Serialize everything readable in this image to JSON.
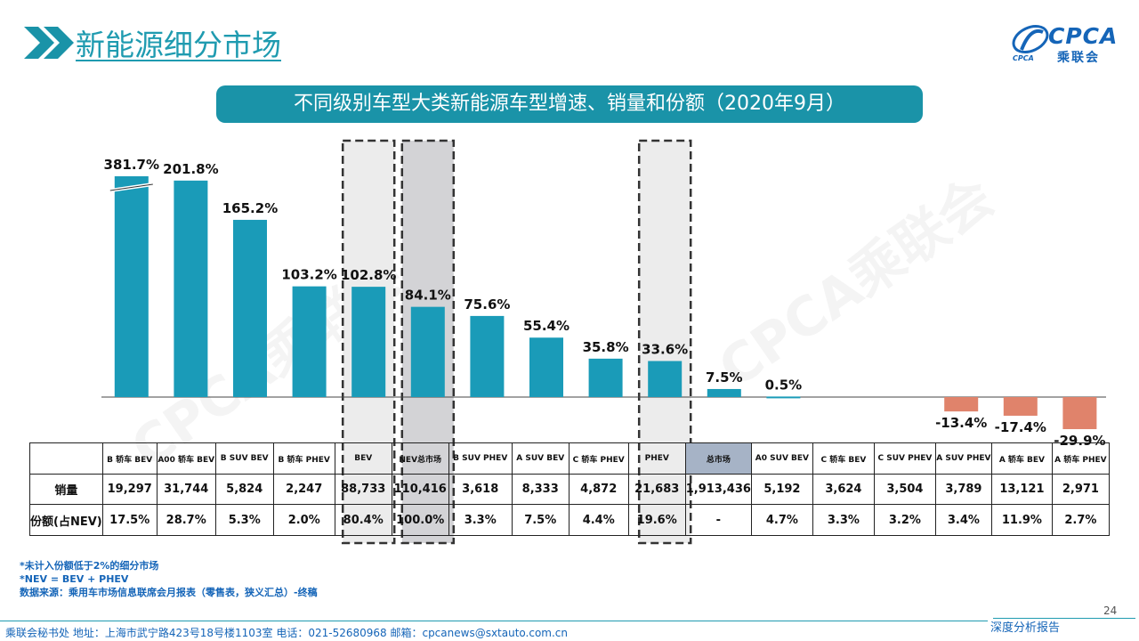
{
  "header": {
    "title": "新能源细分市场",
    "logo_text": "CPCA",
    "logo_sub": "乘联会"
  },
  "chart_subtitle": "不同级别车型大类新能源车型增速、销量和份额（2020年9月）",
  "watermark": "CPCA乘联会",
  "colors": {
    "accent": "#1a93a8",
    "bar_positive": "#1a9bb8",
    "bar_negative": "#e0836b",
    "highlight_cell": "#a6b3c6"
  },
  "chart_data": {
    "type": "bar",
    "categories": [
      "B 轿车 BEV",
      "A00 轿车 BEV",
      "B SUV BEV",
      "B 轿车 PHEV",
      "BEV",
      "NEV总市场",
      "B SUV PHEV",
      "A SUV BEV",
      "C 轿车 PHEV",
      "PHEV",
      "总市场",
      "A0 SUV BEV",
      "C 轿车 BEV",
      "C SUV PHEV",
      "A SUV PHEV",
      "A 轿车 BEV",
      "A 轿车 PHEV"
    ],
    "series": [
      {
        "values": [
          381.7,
          201.8,
          165.2,
          103.2,
          102.8,
          84.1,
          75.6,
          55.4,
          35.8,
          33.6,
          7.5,
          0.5,
          null,
          null,
          -13.4,
          -17.4,
          -29.9
        ]
      }
    ],
    "value_labels": [
      "381.7%",
      "201.8%",
      "165.2%",
      "103.2%",
      "102.8%",
      "84.1%",
      "75.6%",
      "55.4%",
      "35.8%",
      "33.6%",
      "7.5%",
      "0.5%",
      "",
      "",
      "-13.4%",
      "-17.4%",
      "-29.9%"
    ],
    "broken_axis_index": 0,
    "highlighted_dashed": [
      4,
      5,
      9
    ]
  },
  "table": {
    "row_labels": [
      "销量",
      "份额(占NEV)"
    ],
    "sales": [
      "19,297",
      "31,744",
      "5,824",
      "2,247",
      "88,733",
      "110,416",
      "3,618",
      "8,333",
      "4,872",
      "21,683",
      "1,913,436",
      "5,192",
      "3,624",
      "3,504",
      "3,789",
      "13,121",
      "2,971"
    ],
    "share": [
      "17.5%",
      "28.7%",
      "5.3%",
      "2.0%",
      "80.4%",
      "100.0%",
      "3.3%",
      "7.5%",
      "4.4%",
      "19.6%",
      "-",
      "4.7%",
      "3.3%",
      "3.2%",
      "3.4%",
      "11.9%",
      "2.7%"
    ]
  },
  "notes": [
    "*未计入份额低于2%的细分市场",
    "*NEV = BEV + PHEV",
    "数据来源：乘用车市场信息联席会月报表（零售表，狭义汇总）-终稿"
  ],
  "footer": {
    "address": "乘联会秘书处   地址：上海市武宁路423号18号楼1103室  电话：021-52680968   邮箱：cpcanews@sxtauto.com.cn",
    "right_text": "深度分析报告",
    "page": "24"
  }
}
